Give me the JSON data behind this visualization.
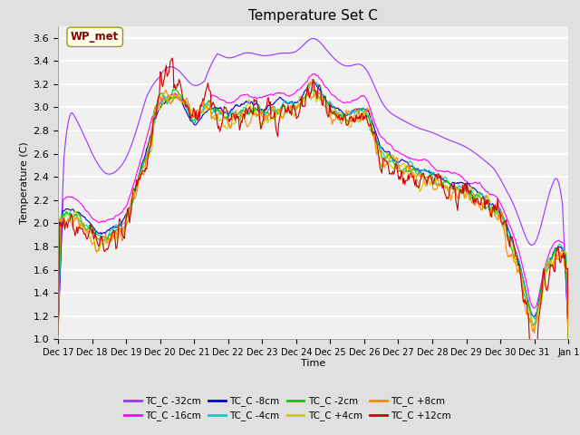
{
  "title": "Temperature Set C",
  "xlabel": "Time",
  "ylabel": "Temperature (C)",
  "ylim": [
    1.0,
    3.7
  ],
  "xlim": [
    0,
    15
  ],
  "annotation": "WP_met",
  "annotation_color": "#8B0000",
  "annotation_bg": "#FFFFEE",
  "annotation_edge": "#999900",
  "series": [
    {
      "label": "TC_C -32cm",
      "color": "#9933FF"
    },
    {
      "label": "TC_C -16cm",
      "color": "#FF00FF"
    },
    {
      "label": "TC_C -8cm",
      "color": "#0000CC"
    },
    {
      "label": "TC_C -4cm",
      "color": "#00CCCC"
    },
    {
      "label": "TC_C -2cm",
      "color": "#00CC00"
    },
    {
      "label": "TC_C +4cm",
      "color": "#CCCC00"
    },
    {
      "label": "TC_C +8cm",
      "color": "#FF8800"
    },
    {
      "label": "TC_C +12cm",
      "color": "#CC0000"
    }
  ],
  "xtick_labels": [
    "Dec 17",
    "Dec 18",
    "Dec 19",
    "Dec 20",
    "Dec 21",
    "Dec 22",
    "Dec 23",
    "Dec 24",
    "Dec 25",
    "Dec 26",
    "Dec 27",
    "Dec 28",
    "Dec 29",
    "Dec 30",
    "Dec 31",
    "Jan 1"
  ],
  "ytick_labels": [
    "1.0",
    "1.2",
    "1.4",
    "1.6",
    "1.8",
    "2.0",
    "2.2",
    "2.4",
    "2.6",
    "2.8",
    "3.0",
    "3.2",
    "3.4",
    "3.6"
  ],
  "ytick_vals": [
    1.0,
    1.2,
    1.4,
    1.6,
    1.8,
    2.0,
    2.2,
    2.4,
    2.6,
    2.8,
    3.0,
    3.2,
    3.4,
    3.6
  ],
  "fig_bg": "#E0E0E0",
  "plot_bg": "#F0F0F0",
  "grid_color": "#FFFFFF",
  "n_points": 600,
  "seed": 7
}
